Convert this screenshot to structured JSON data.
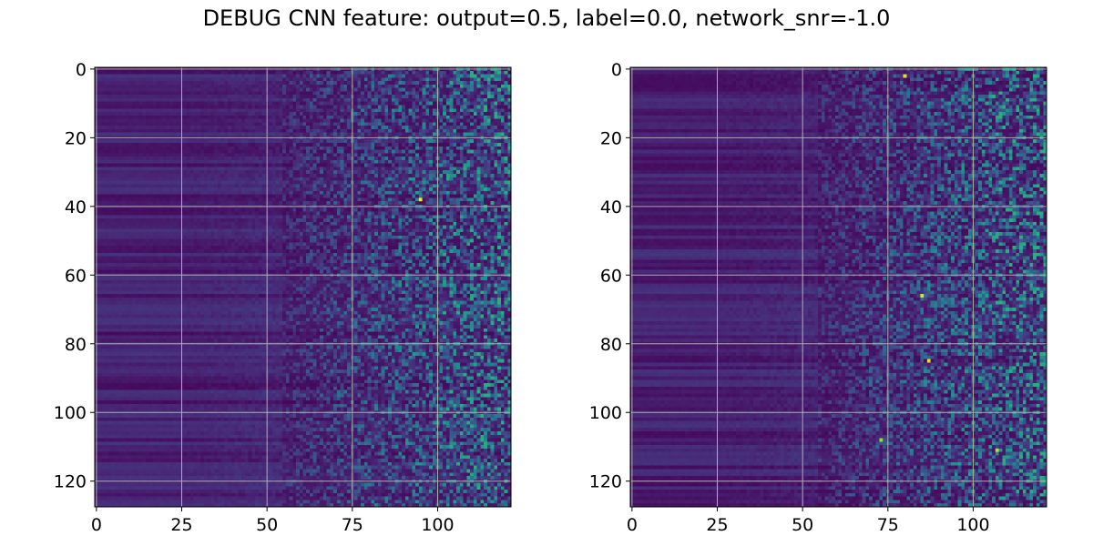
{
  "figure": {
    "title": "DEBUG CNN feature: output=0.5, label=0.0, network_snr=-1.0"
  },
  "chart_data": [
    {
      "type": "heatmap",
      "panel": "left",
      "colormap": "viridis",
      "rows": 128,
      "cols": 122,
      "xlim": [
        -0.5,
        121.5
      ],
      "ylim": [
        127.5,
        -0.5
      ],
      "y_inverted": true,
      "x_ticks": [
        0,
        25,
        50,
        75,
        100
      ],
      "x_tick_labels": [
        "0",
        "25",
        "50",
        "75",
        "100"
      ],
      "y_ticks": [
        0,
        20,
        40,
        60,
        80,
        100,
        120
      ],
      "y_tick_labels": [
        "0",
        "20",
        "40",
        "60",
        "80",
        "100",
        "120"
      ],
      "grid": true,
      "bright_spots": [
        {
          "x": 95,
          "y": 38,
          "level": 1.0
        }
      ],
      "seed": 7
    },
    {
      "type": "heatmap",
      "panel": "right",
      "colormap": "viridis",
      "rows": 128,
      "cols": 122,
      "xlim": [
        -0.5,
        121.5
      ],
      "ylim": [
        127.5,
        -0.5
      ],
      "y_inverted": true,
      "x_ticks": [
        0,
        25,
        50,
        75,
        100
      ],
      "x_tick_labels": [
        "0",
        "25",
        "50",
        "75",
        "100"
      ],
      "y_ticks": [
        0,
        20,
        40,
        60,
        80,
        100,
        120
      ],
      "y_tick_labels": [
        "0",
        "20",
        "40",
        "60",
        "80",
        "100",
        "120"
      ],
      "grid": true,
      "bright_spots": [
        {
          "x": 80,
          "y": 2,
          "level": 0.95
        },
        {
          "x": 85,
          "y": 66,
          "level": 0.95
        },
        {
          "x": 87,
          "y": 85,
          "level": 0.95
        },
        {
          "x": 107,
          "y": 111,
          "level": 0.9
        },
        {
          "x": 73,
          "y": 108,
          "level": 0.85
        }
      ],
      "seed": 13
    }
  ]
}
